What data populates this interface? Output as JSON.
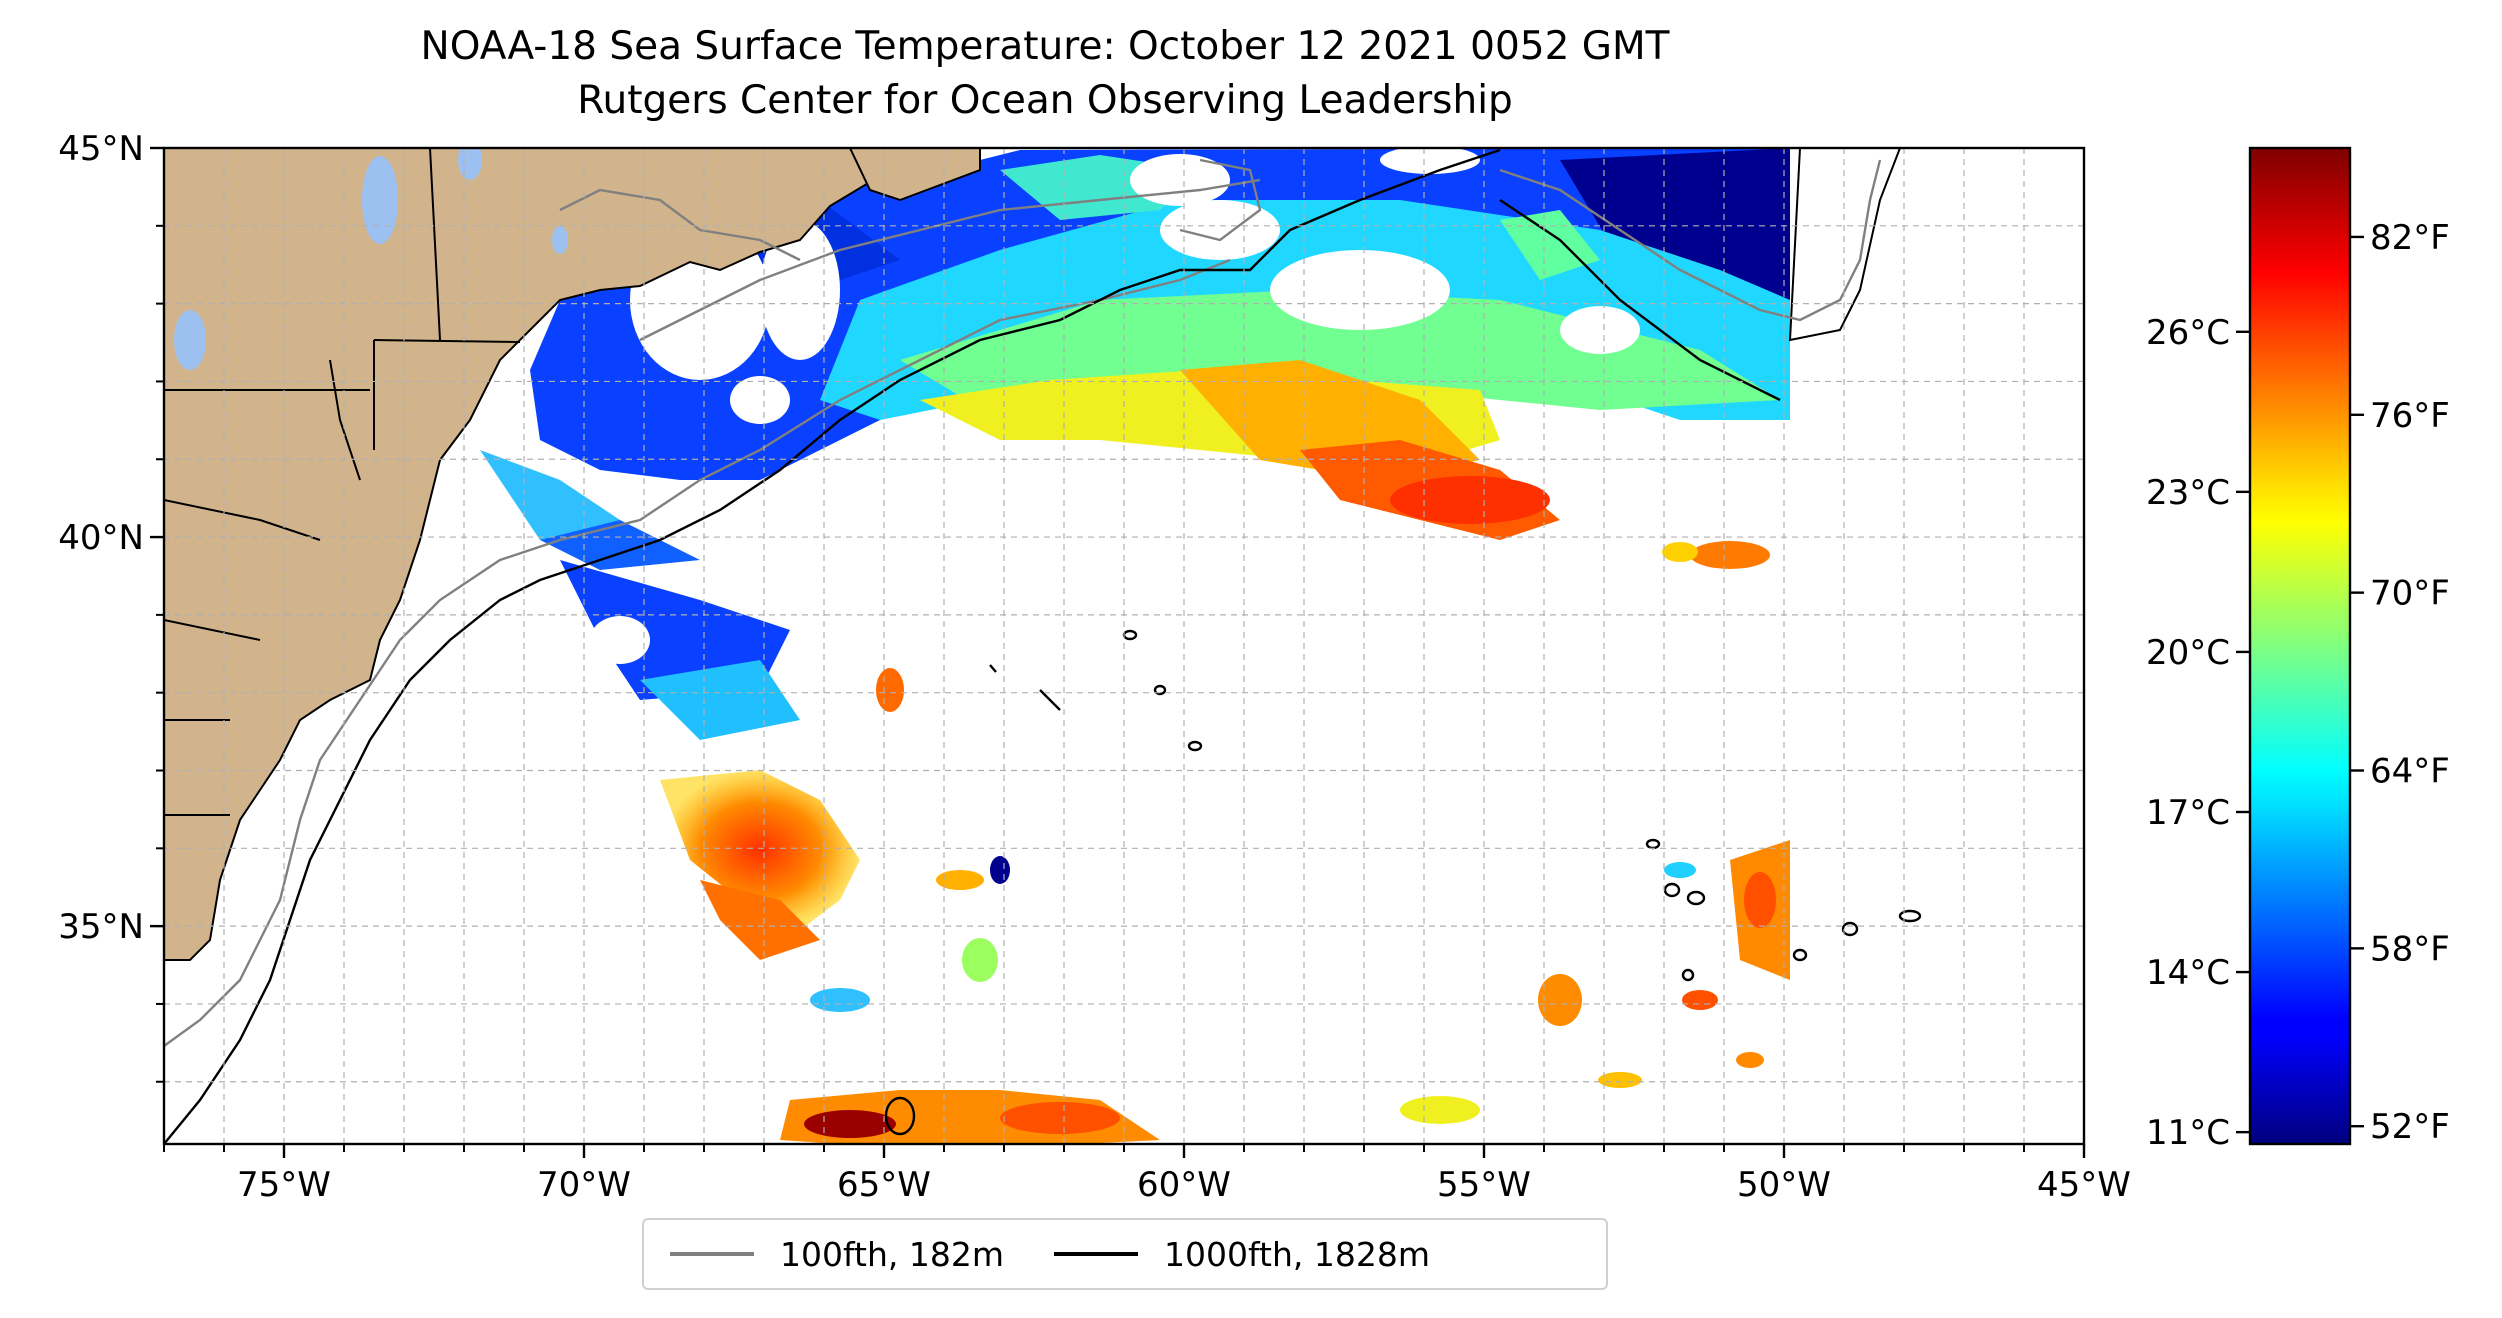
{
  "title": {
    "line1": "NOAA-18 Sea Surface Temperature: October 12 2021 0052 GMT",
    "line2": "Rutgers Center for Ocean Observing Leadership"
  },
  "map": {
    "lon_range": [
      -77,
      -45
    ],
    "lat_range": [
      32.2,
      45
    ],
    "lon_ticks": [
      {
        "value": -75,
        "label": "75°W"
      },
      {
        "value": -70,
        "label": "70°W"
      },
      {
        "value": -65,
        "label": "65°W"
      },
      {
        "value": -60,
        "label": "60°W"
      },
      {
        "value": -55,
        "label": "55°W"
      },
      {
        "value": -50,
        "label": "50°W"
      },
      {
        "value": -45,
        "label": "45°W"
      }
    ],
    "lat_ticks": [
      {
        "value": 45,
        "label": "45°N"
      },
      {
        "value": 40,
        "label": "40°N"
      },
      {
        "value": 35,
        "label": "35°N"
      }
    ],
    "grid": true,
    "land_color": "#d2b48c",
    "water_color": "#9cc0f0"
  },
  "legend": {
    "items": [
      {
        "label": "100fth, 182m",
        "color": "#808080"
      },
      {
        "label": "1000fth, 1828m",
        "color": "#000000"
      }
    ]
  },
  "colorbar": {
    "colormap": "jet",
    "range_f": [
      51.4,
      85.0
    ],
    "celsius_ticks": [
      {
        "value": 26,
        "label": "26°C"
      },
      {
        "value": 23,
        "label": "23°C"
      },
      {
        "value": 20,
        "label": "20°C"
      },
      {
        "value": 17,
        "label": "17°C"
      },
      {
        "value": 14,
        "label": "14°C"
      },
      {
        "value": 11,
        "label": "11°C"
      }
    ],
    "fahrenheit_ticks": [
      {
        "value": 82,
        "label": "82°F"
      },
      {
        "value": 76,
        "label": "76°F"
      },
      {
        "value": 70,
        "label": "70°F"
      },
      {
        "value": 64,
        "label": "64°F"
      },
      {
        "value": 58,
        "label": "58°F"
      },
      {
        "value": 52,
        "label": "52°F"
      }
    ]
  }
}
